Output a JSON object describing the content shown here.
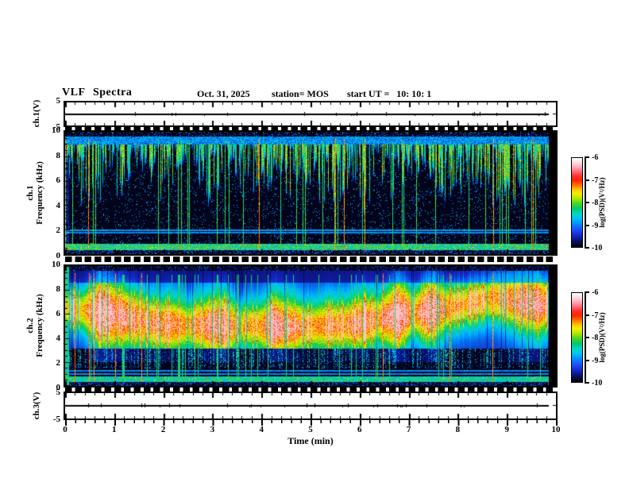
{
  "header": {
    "title": "VLF Spectra",
    "date": "Oct. 31, 2025",
    "station": "station= MOS",
    "start_ut": "start UT =   10: 10: 1"
  },
  "x_axis": {
    "label": "Time (min)",
    "min": 0,
    "max": 10,
    "major_ticks": [
      0,
      1,
      2,
      3,
      4,
      5,
      6,
      7,
      8,
      9,
      10
    ],
    "minor_tick_step_min": 0.2
  },
  "colorbar": {
    "label": "log(PSD)(V²/Hz)",
    "ticks": [
      -6,
      -7,
      -8,
      -9,
      -10
    ],
    "top_value": -6,
    "bottom_value": -10,
    "colors_top_to_bottom": [
      "#ffffff",
      "#ff96a6",
      "#ff3333",
      "#ff7700",
      "#ffcc00",
      "#4ed41e",
      "#00d8c8",
      "#0090ff",
      "#1428c8",
      "#000000"
    ]
  },
  "chart_data": [
    {
      "type": "line",
      "channel": "ch.1",
      "ylabel": "ch.1(V)",
      "ylim": [
        -5,
        5
      ],
      "yticks": [
        5,
        -5
      ],
      "signal_mean_V": 0,
      "signal_description": "flat trace at 0 V with tiny impulsive blips",
      "data_end_min": 9.85
    },
    {
      "type": "heatmap",
      "channel": "ch.1",
      "ylabel_lines": [
        "ch.1",
        "Frequency (kHz)"
      ],
      "ylim_kHz": [
        0,
        10
      ],
      "yticks": [
        10,
        8,
        6,
        4,
        2,
        0
      ],
      "clim_log_psd": [
        -10,
        -6
      ],
      "features": {
        "quiet_top_band_kHz": [
          9.6,
          10
        ],
        "hiss_band_kHz": [
          8.95,
          9.6
        ],
        "impulse_streak_region_kHz": [
          2.0,
          8.95
        ],
        "horizontal_lines_kHz": [
          1.75,
          1.95
        ],
        "speckle_band_kHz": [
          0.3,
          0.82
        ],
        "style": "dark background, dense cyan-green vertical impulse streaks hanging from 9 kHz, sparse red sferic columns"
      },
      "data_end_min": 9.85
    },
    {
      "type": "heatmap",
      "channel": "ch.2",
      "ylabel_lines": [
        "ch.2",
        "Frequency (kHz)"
      ],
      "ylim_kHz": [
        0,
        10
      ],
      "yticks": [
        10,
        8,
        6,
        4,
        2,
        0
      ],
      "clim_log_psd": [
        -10,
        -6
      ],
      "features": {
        "emission_band_kHz": [
          3.1,
          9.2
        ],
        "emission_peak_kHz": 6.3,
        "horizontal_lines_kHz": [
          1.0,
          1.28
        ],
        "speckle_band_kHz": [
          0.3,
          0.82
        ],
        "style": "intense green band with yellow-orange-red vertical striations peaking near 6-7 kHz, dark gap 1.4-3 kHz, bright speckle band below 1 kHz"
      },
      "data_end_min": 9.85
    },
    {
      "type": "line",
      "channel": "ch.3",
      "ylabel": "ch.3(V)",
      "ylim": [
        -5,
        5
      ],
      "yticks": [
        5,
        -5
      ],
      "signal_mean_V": 0,
      "signal_description": "flat trace at 0 V with small noise blips, denser near 3-6 min",
      "data_end_min": 9.85
    }
  ]
}
